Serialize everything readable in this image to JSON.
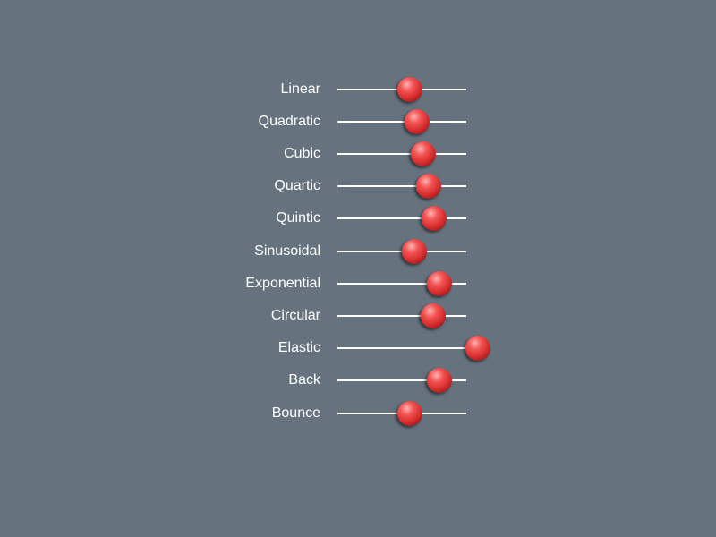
{
  "easing": {
    "items": [
      {
        "label": "Linear",
        "value": 0.56
      },
      {
        "label": "Quadratic",
        "value": 0.62
      },
      {
        "label": "Cubic",
        "value": 0.67
      },
      {
        "label": "Quartic",
        "value": 0.71
      },
      {
        "label": "Quintic",
        "value": 0.75
      },
      {
        "label": "Sinusoidal",
        "value": 0.6
      },
      {
        "label": "Exponential",
        "value": 0.79
      },
      {
        "label": "Circular",
        "value": 0.74
      },
      {
        "label": "Elastic",
        "value": 1.09
      },
      {
        "label": "Back",
        "value": 0.79
      },
      {
        "label": "Bounce",
        "value": 0.56
      }
    ]
  },
  "colors": {
    "background": "#66737f",
    "track": "#ffffff",
    "label": "#ffffff",
    "ball": "#e03a3a"
  }
}
